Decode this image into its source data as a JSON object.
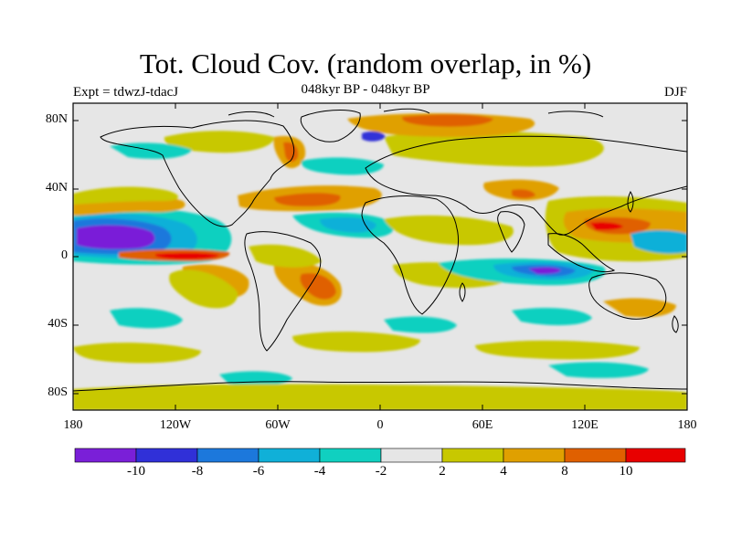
{
  "header": {
    "title": "Tot. Cloud Cov. (random overlap, in %)",
    "subtitle": "048kyr BP - 048kyr BP",
    "expt": "Expt = tdwzJ-tdacJ",
    "season": "DJF"
  },
  "axes": {
    "lat_labels": [
      "80N",
      "40N",
      "0",
      "40S",
      "80S"
    ],
    "lon_labels": [
      "180",
      "120W",
      "60W",
      "0",
      "60E",
      "120E",
      "180"
    ]
  },
  "colorbar": {
    "colors": [
      "#7a1fd8",
      "#3030d8",
      "#1c78dc",
      "#10b0d8",
      "#10d0c0",
      "#e6e6e6",
      "#c8c800",
      "#e0a000",
      "#e06000",
      "#e80000"
    ],
    "labels": [
      "-10",
      "-8",
      "-6",
      "-4",
      "-2",
      "2",
      "4",
      "8",
      "10"
    ]
  }
}
